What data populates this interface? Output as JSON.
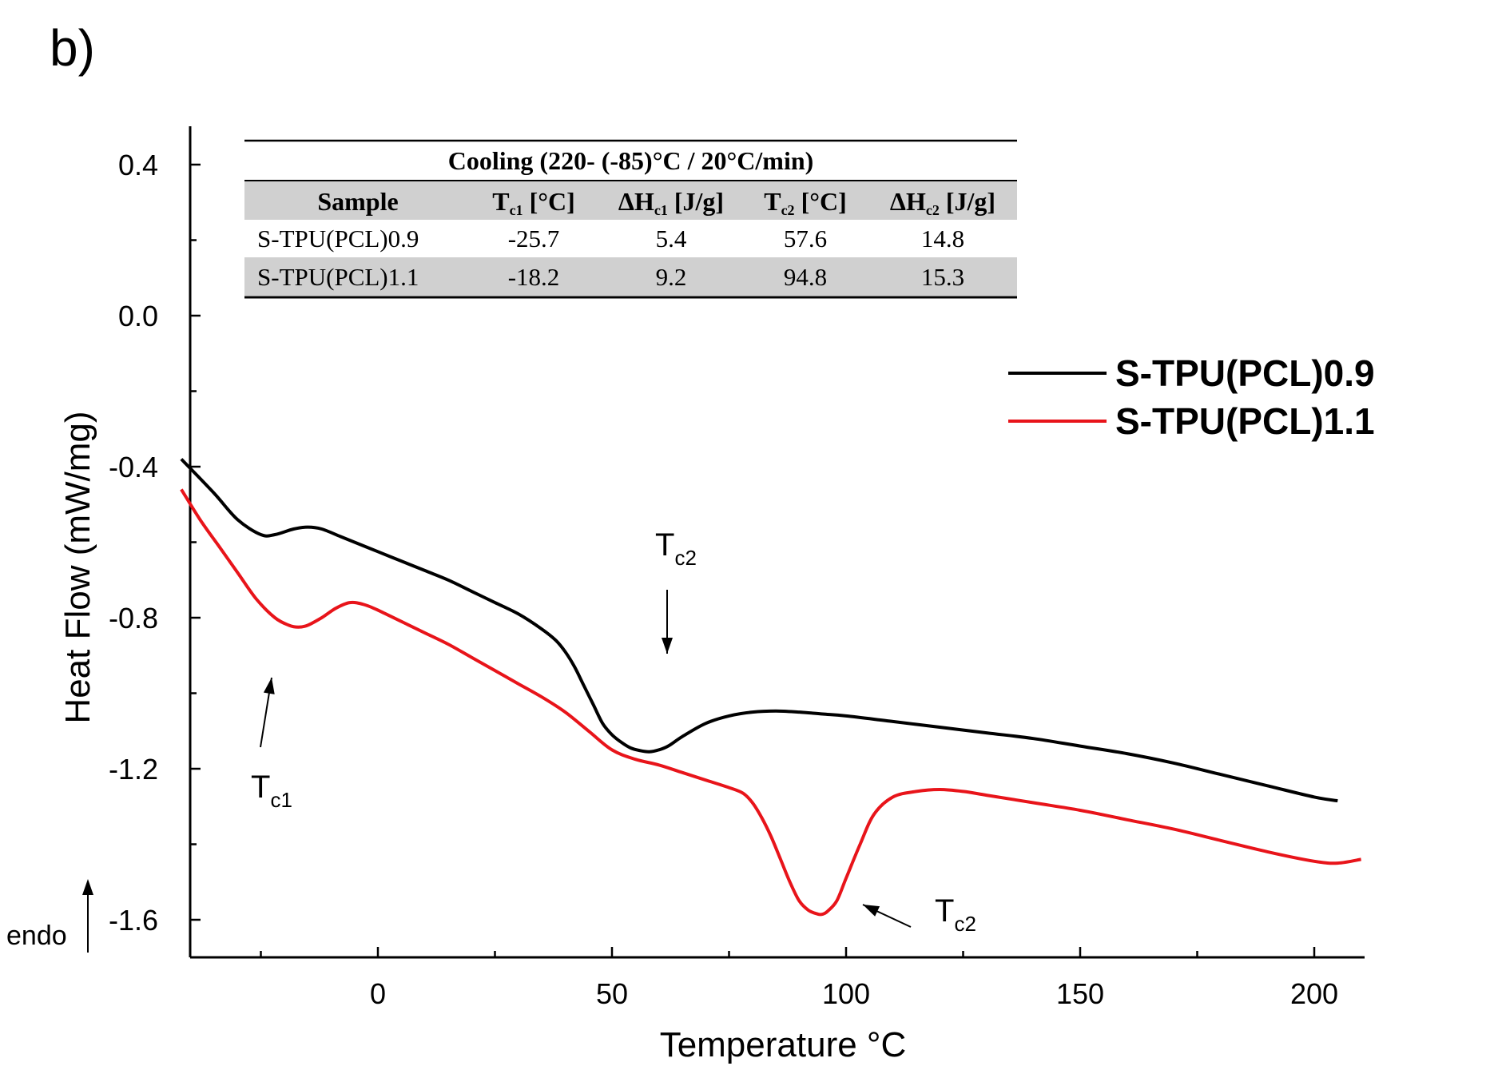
{
  "panel_label": "b)",
  "chart_data": {
    "type": "line",
    "title": "",
    "xlabel": "Temperature °C",
    "ylabel": "Heat Flow (mW/mg)",
    "xlim": [
      -42,
      210
    ],
    "ylim": [
      -1.7,
      0.5
    ],
    "xticks": [
      0,
      50,
      100,
      150,
      200
    ],
    "yticks": [
      0.4,
      0.0,
      -0.4,
      -0.8,
      -1.2,
      -1.6
    ],
    "endo_label": "endo",
    "series": [
      {
        "name": "S-TPU(PCL)0.9",
        "color": "#000000",
        "x": [
          -42,
          -35,
          -30,
          -25,
          -22,
          -18,
          -15,
          -12,
          -8,
          -5,
          0,
          5,
          10,
          15,
          20,
          25,
          30,
          35,
          38,
          40,
          42,
          44,
          46,
          48,
          50,
          52,
          54,
          56,
          58,
          60,
          62,
          65,
          70,
          75,
          80,
          85,
          90,
          95,
          100,
          110,
          120,
          130,
          140,
          150,
          160,
          170,
          180,
          190,
          200,
          205
        ],
        "y": [
          -0.38,
          -0.47,
          -0.54,
          -0.58,
          -0.58,
          -0.565,
          -0.56,
          -0.565,
          -0.585,
          -0.6,
          -0.625,
          -0.65,
          -0.675,
          -0.7,
          -0.73,
          -0.76,
          -0.79,
          -0.83,
          -0.86,
          -0.89,
          -0.93,
          -0.98,
          -1.03,
          -1.08,
          -1.11,
          -1.13,
          -1.145,
          -1.152,
          -1.155,
          -1.15,
          -1.14,
          -1.115,
          -1.08,
          -1.06,
          -1.05,
          -1.047,
          -1.05,
          -1.055,
          -1.06,
          -1.075,
          -1.09,
          -1.105,
          -1.12,
          -1.14,
          -1.16,
          -1.185,
          -1.215,
          -1.245,
          -1.275,
          -1.285
        ]
      },
      {
        "name": "S-TPU(PCL)1.1",
        "color": "#e8141a",
        "x": [
          -42,
          -38,
          -34,
          -30,
          -26,
          -22,
          -19,
          -17,
          -15,
          -12,
          -9,
          -6,
          -3,
          0,
          5,
          10,
          15,
          20,
          25,
          30,
          35,
          40,
          45,
          50,
          55,
          60,
          65,
          70,
          75,
          78,
          80,
          82,
          84,
          86,
          88,
          90,
          92,
          94,
          95,
          96,
          98,
          100,
          103,
          106,
          110,
          115,
          120,
          125,
          130,
          140,
          150,
          160,
          170,
          180,
          190,
          200,
          205,
          210
        ],
        "y": [
          -0.46,
          -0.54,
          -0.61,
          -0.68,
          -0.75,
          -0.8,
          -0.82,
          -0.825,
          -0.82,
          -0.8,
          -0.775,
          -0.76,
          -0.765,
          -0.78,
          -0.81,
          -0.84,
          -0.87,
          -0.905,
          -0.94,
          -0.975,
          -1.01,
          -1.05,
          -1.1,
          -1.15,
          -1.175,
          -1.19,
          -1.21,
          -1.23,
          -1.25,
          -1.265,
          -1.29,
          -1.33,
          -1.38,
          -1.44,
          -1.5,
          -1.55,
          -1.575,
          -1.585,
          -1.585,
          -1.578,
          -1.55,
          -1.49,
          -1.4,
          -1.32,
          -1.275,
          -1.26,
          -1.255,
          -1.26,
          -1.27,
          -1.29,
          -1.31,
          -1.335,
          -1.36,
          -1.39,
          -1.42,
          -1.445,
          -1.45,
          -1.44
        ]
      }
    ],
    "annotations": [
      {
        "id": "tc2-top",
        "base": "T",
        "sub": "c2",
        "arrow": "down"
      },
      {
        "id": "tc1",
        "base": "T",
        "sub": "c1",
        "arrow": "up"
      },
      {
        "id": "tc2-red",
        "base": "T",
        "sub": "c2",
        "arrow": "left"
      }
    ]
  },
  "inset_table": {
    "title": "Cooling (220- (-85)°C / 20°C/min)",
    "headers": [
      {
        "base": "Sample",
        "sub": "",
        "rest": ""
      },
      {
        "base": "T",
        "sub": "c1",
        "rest": " [°C]"
      },
      {
        "base": "ΔH",
        "sub": "c1",
        "rest": " [J/g]"
      },
      {
        "base": "T",
        "sub": "c2",
        "rest": " [°C]"
      },
      {
        "base": "ΔH",
        "sub": "c2",
        "rest": " [J/g]"
      }
    ],
    "rows": [
      [
        "S-TPU(PCL)0.9",
        "-25.7",
        "5.4",
        "57.6",
        "14.8"
      ],
      [
        "S-TPU(PCL)1.1",
        "-18.2",
        "9.2",
        "94.8",
        "15.3"
      ]
    ],
    "shade_color": "#d0d0d0"
  }
}
